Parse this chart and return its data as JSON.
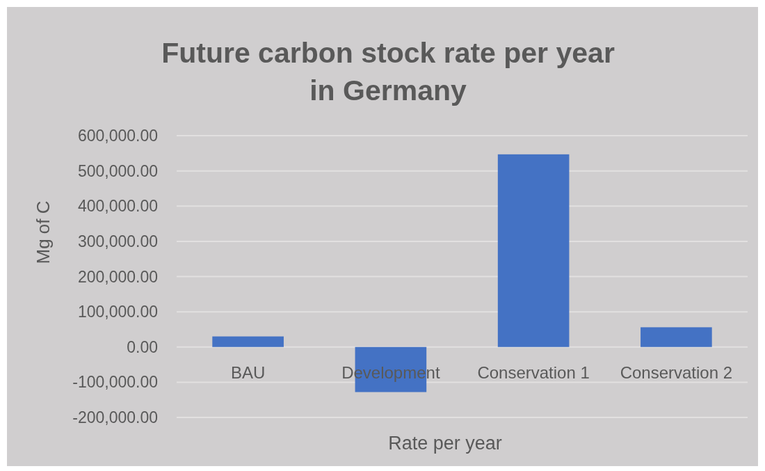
{
  "chart_data": {
    "type": "bar",
    "title": "Future carbon stock rate per year in Germany",
    "xlabel": "Rate per year",
    "ylabel": "Mg of C",
    "categories": [
      "BAU",
      "Development",
      "Conservation 1",
      "Conservation 2"
    ],
    "values": [
      30000,
      -128000,
      547000,
      56000
    ],
    "color": "#4472c4",
    "ylim": [
      -200000,
      600000
    ],
    "yticks": [
      {
        "value": -200000,
        "label": "-200,000.00"
      },
      {
        "value": -100000,
        "label": "-100,000.00"
      },
      {
        "value": 0,
        "label": "0.00"
      },
      {
        "value": 100000,
        "label": "100,000.00"
      },
      {
        "value": 200000,
        "label": "200,000.00"
      },
      {
        "value": 300000,
        "label": "300,000.00"
      },
      {
        "value": 400000,
        "label": "400,000.00"
      },
      {
        "value": 500000,
        "label": "500,000.00"
      },
      {
        "value": 600000,
        "label": "600,000.00"
      }
    ],
    "grid": true
  }
}
